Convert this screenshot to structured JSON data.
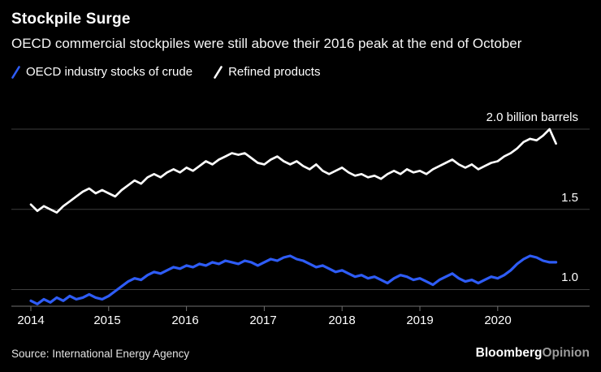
{
  "header": {
    "title": "Stockpile Surge",
    "subtitle": "OECD commercial stockpiles were still above their 2016 peak at the end of October"
  },
  "legend": [
    {
      "label": "OECD industry stocks of crude",
      "color": "#2e5cf6"
    },
    {
      "label": "Refined products",
      "color": "#ffffff"
    }
  ],
  "footer": {
    "source": "Source: International Energy Agency",
    "brand_bold": "Bloomberg",
    "brand_light": "Opinion"
  },
  "chart_data": {
    "type": "line",
    "x_start_year": 2014,
    "points_per_year": 12,
    "x_end_label": "2020-10",
    "x_tick_labels": [
      "2014",
      "2015",
      "2016",
      "2017",
      "2018",
      "2019",
      "2020"
    ],
    "y_ticks": [
      1.0,
      1.5,
      2.0
    ],
    "y_tick_labels": [
      "1.0",
      "1.5",
      "2.0 billion barrels"
    ],
    "ylim": [
      0.88,
      2.08
    ],
    "grid": true,
    "legend_position": "top-left",
    "series": [
      {
        "name": "OECD industry stocks of crude",
        "color": "#2e5cf6",
        "values": [
          0.93,
          0.91,
          0.94,
          0.92,
          0.95,
          0.93,
          0.96,
          0.94,
          0.95,
          0.97,
          0.95,
          0.94,
          0.96,
          0.99,
          1.02,
          1.05,
          1.07,
          1.06,
          1.09,
          1.11,
          1.1,
          1.12,
          1.14,
          1.13,
          1.15,
          1.14,
          1.16,
          1.15,
          1.17,
          1.16,
          1.18,
          1.17,
          1.16,
          1.18,
          1.17,
          1.15,
          1.17,
          1.19,
          1.18,
          1.2,
          1.21,
          1.19,
          1.18,
          1.16,
          1.14,
          1.15,
          1.13,
          1.11,
          1.12,
          1.1,
          1.08,
          1.09,
          1.07,
          1.08,
          1.06,
          1.04,
          1.07,
          1.09,
          1.08,
          1.06,
          1.07,
          1.05,
          1.03,
          1.06,
          1.08,
          1.1,
          1.07,
          1.05,
          1.06,
          1.04,
          1.06,
          1.08,
          1.07,
          1.09,
          1.12,
          1.16,
          1.19,
          1.21,
          1.2,
          1.18,
          1.17,
          1.17
        ]
      },
      {
        "name": "Refined products",
        "color": "#ffffff",
        "values": [
          1.53,
          1.49,
          1.52,
          1.5,
          1.48,
          1.52,
          1.55,
          1.58,
          1.61,
          1.63,
          1.6,
          1.62,
          1.6,
          1.58,
          1.62,
          1.65,
          1.68,
          1.66,
          1.7,
          1.72,
          1.7,
          1.73,
          1.75,
          1.73,
          1.76,
          1.74,
          1.77,
          1.8,
          1.78,
          1.81,
          1.83,
          1.85,
          1.84,
          1.85,
          1.82,
          1.79,
          1.78,
          1.81,
          1.83,
          1.8,
          1.78,
          1.8,
          1.77,
          1.75,
          1.78,
          1.74,
          1.72,
          1.74,
          1.76,
          1.73,
          1.71,
          1.72,
          1.7,
          1.71,
          1.69,
          1.72,
          1.74,
          1.72,
          1.75,
          1.73,
          1.74,
          1.72,
          1.75,
          1.77,
          1.79,
          1.81,
          1.78,
          1.76,
          1.78,
          1.75,
          1.77,
          1.79,
          1.8,
          1.83,
          1.85,
          1.88,
          1.92,
          1.94,
          1.93,
          1.96,
          2.0,
          1.91
        ]
      }
    ]
  }
}
